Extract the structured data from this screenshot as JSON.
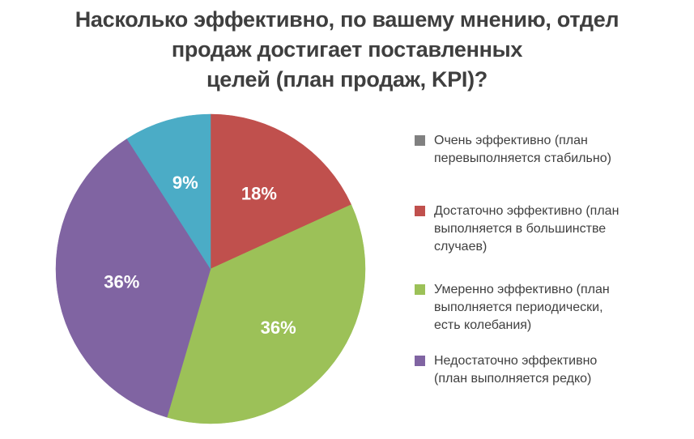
{
  "chart_data": {
    "type": "pie",
    "title": "Насколько эффективно, по вашему мнению, отдел\nпродаж достигает поставленных\nцелей (план продаж, KPI)?",
    "legend_position": "right",
    "start_angle_deg": 0,
    "direction": "clockwise",
    "slices": [
      {
        "name": "red-slice",
        "value": 18,
        "percent_label": "18%",
        "color": "#C0504D"
      },
      {
        "name": "green-slice",
        "value": 36,
        "percent_label": "36%",
        "color": "#9CC158"
      },
      {
        "name": "purple-slice",
        "value": 36,
        "percent_label": "36%",
        "color": "#8064A2"
      },
      {
        "name": "teal-slice",
        "value": 9,
        "percent_label": "9%",
        "color": "#4BACC6"
      }
    ],
    "legend": [
      {
        "label": "Очень эффективно (план\nперевыполняется стабильно)",
        "color": "#808080"
      },
      {
        "label": "Достаточно эффективно (план\nвыполняется в большинстве\nслучаев)",
        "color": "#C0504D"
      },
      {
        "label": "Умеренно эффективно (план\nвыполняется периодически,\nесть колебания)",
        "color": "#9CC158"
      },
      {
        "label": "Недостаточно эффективно\n(план выполняется редко)",
        "color": "#8064A2"
      }
    ]
  }
}
